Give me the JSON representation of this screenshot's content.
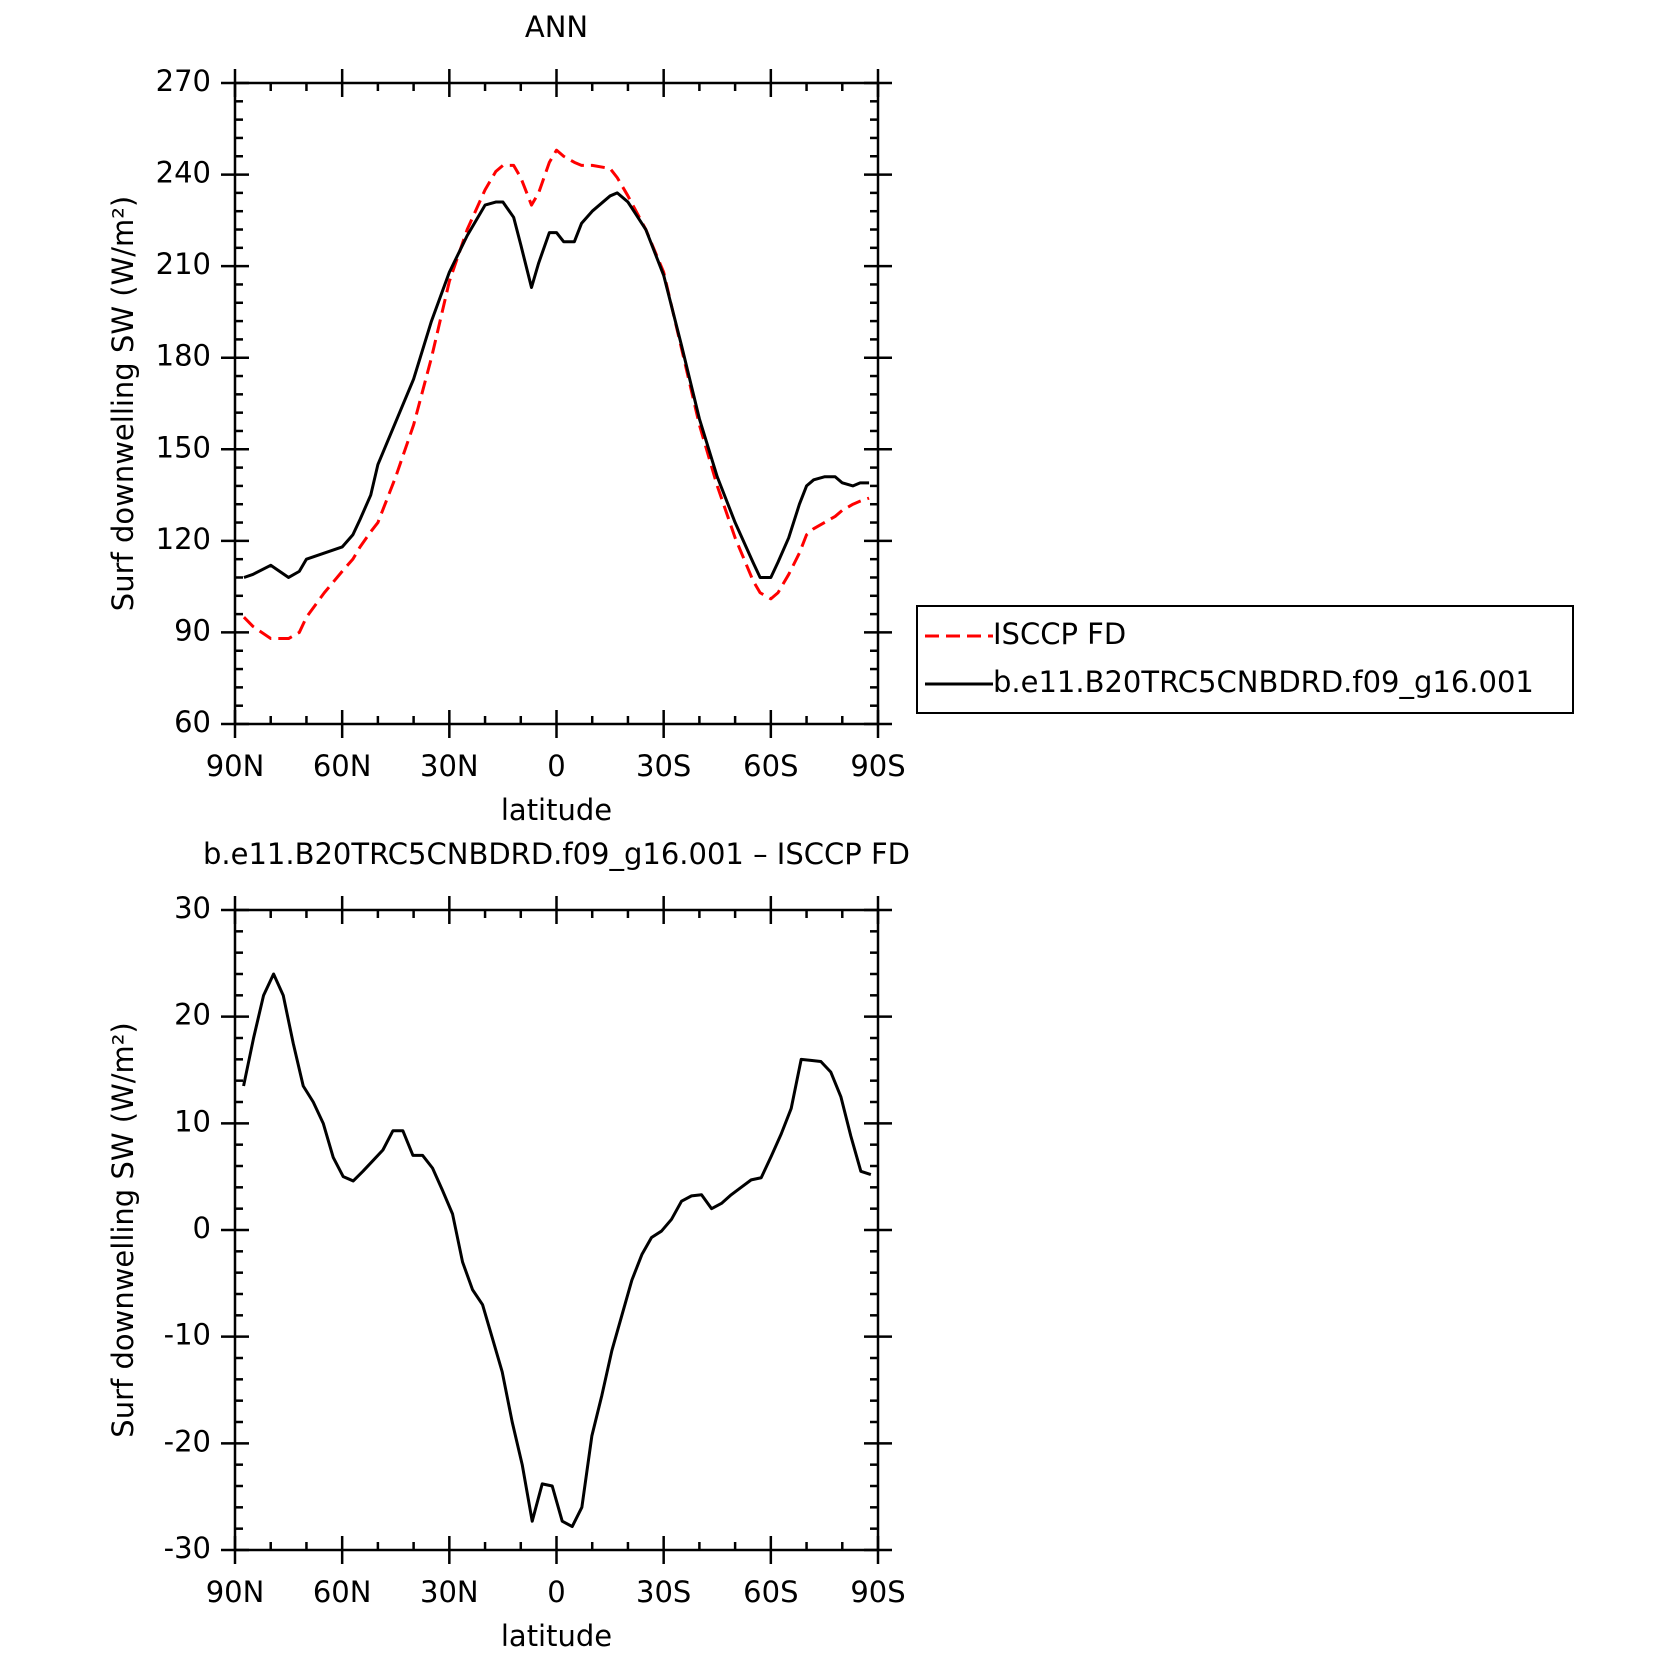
{
  "chart_data": [
    {
      "type": "line",
      "title": "ANN",
      "xlabel": "latitude",
      "ylabel": "Surf downwelling SW (W/m²)",
      "x": [
        87.5,
        85,
        80,
        75,
        72,
        70,
        65,
        60,
        57,
        55,
        52,
        50,
        45,
        40,
        35,
        30,
        25,
        20,
        17,
        15,
        12,
        10,
        7,
        5,
        2,
        0,
        -2,
        -5,
        -7,
        -10,
        -15,
        -17,
        -20,
        -25,
        -30,
        -35,
        -40,
        -45,
        -50,
        -55,
        -57,
        -60,
        -62,
        -65,
        -68,
        -70,
        -72,
        -75,
        -78,
        -80,
        -83,
        -85,
        -87.5
      ],
      "series": [
        {
          "name": "ISCCP FD",
          "color": "#ff0000",
          "dash": true,
          "values": [
            95,
            92,
            88,
            88,
            90,
            95,
            103,
            110,
            114,
            118,
            123,
            126,
            141,
            158,
            180,
            205,
            222,
            235,
            241,
            243,
            243,
            239,
            230,
            234,
            244,
            248,
            246,
            244,
            243,
            243,
            242,
            239,
            233,
            222,
            208,
            183,
            158,
            138,
            121,
            107,
            103,
            101,
            103,
            109,
            116,
            122,
            124,
            126,
            128,
            130,
            132,
            133,
            134
          ]
        },
        {
          "name": "b.e11.B20TRC5CNBDRD.f09_g16.001",
          "color": "#000000",
          "dash": false,
          "values": [
            108,
            109,
            112,
            108,
            110,
            114,
            116,
            118,
            122,
            127,
            135,
            145,
            159,
            173,
            192,
            208,
            220,
            230,
            231,
            231,
            226,
            217,
            203,
            211,
            221,
            221,
            218,
            218,
            224,
            228,
            233,
            234,
            231,
            222,
            207,
            184,
            160,
            141,
            126,
            113,
            108,
            108,
            113,
            121,
            132,
            138,
            140,
            141,
            141,
            139,
            138,
            139,
            139
          ]
        }
      ],
      "xlim": [
        90,
        -90
      ],
      "xticks": [
        {
          "value": 90,
          "label": "90N"
        },
        {
          "value": 60,
          "label": "60N"
        },
        {
          "value": 30,
          "label": "30N"
        },
        0,
        {
          "value": -30,
          "label": "30S"
        },
        {
          "value": -60,
          "label": "60S"
        },
        {
          "value": -90,
          "label": "90S"
        }
      ],
      "ylim": [
        60,
        270
      ],
      "yticks": [
        60,
        90,
        120,
        150,
        180,
        210,
        240,
        270
      ],
      "legend": "right"
    },
    {
      "type": "line",
      "title": "b.e11.B20TRC5CNBDRD.f09_g16.001 – ISCCP FD",
      "xlabel": "latitude",
      "ylabel": "Surf downwelling SW (W/m²)",
      "x": [
        87.6,
        84.8,
        82.0,
        79.2,
        76.5,
        73.7,
        70.9,
        68.1,
        65.3,
        62.5,
        59.7,
        56.9,
        54.2,
        51.4,
        48.6,
        45.8,
        43.0,
        40.2,
        37.5,
        34.7,
        31.9,
        29.1,
        26.3,
        23.5,
        20.7,
        17.9,
        15.2,
        12.4,
        9.6,
        6.8,
        4.0,
        1.2,
        -1.6,
        -4.4,
        -7.1,
        -9.9,
        -12.7,
        -15.5,
        -18.3,
        -21.1,
        -23.9,
        -26.6,
        -29.4,
        -32.2,
        -35.0,
        -37.8,
        -40.6,
        -43.4,
        -46.2,
        -48.9,
        -51.7,
        -54.5,
        -57.3,
        -60.1,
        -62.9,
        -65.7,
        -68.5,
        -71.2,
        -74.0,
        -76.8,
        -79.6,
        -82.4,
        -85.2,
        -88.0
      ],
      "series": [
        {
          "color": "#000000",
          "dash": false,
          "values": [
            13.5,
            18,
            22,
            24,
            22,
            17.5,
            13.5,
            12,
            10,
            6.8,
            5,
            4.6,
            5.5,
            6.5,
            7.5,
            9.3,
            9.3,
            7,
            7,
            5.8,
            3.7,
            1.5,
            -3,
            -5.6,
            -7,
            -10.2,
            -13.3,
            -18,
            -22,
            -27.3,
            -23.8,
            -24,
            -27.3,
            -27.8,
            -26,
            -19.3,
            -15.5,
            -11.3,
            -8,
            -4.7,
            -2.3,
            -0.7,
            -0.1,
            1,
            2.7,
            3.2,
            3.3,
            2,
            2.5,
            3.3,
            4,
            4.7,
            4.9,
            6.9,
            9,
            11.4,
            16,
            15.9,
            15.8,
            14.8,
            12.5,
            8.8,
            5.5,
            5.2
          ]
        }
      ],
      "xlim": [
        90,
        -90
      ],
      "xticks": [
        {
          "value": 90,
          "label": "90N"
        },
        {
          "value": 60,
          "label": "60N"
        },
        {
          "value": 30,
          "label": "30N"
        },
        0,
        {
          "value": -30,
          "label": "30S"
        },
        {
          "value": -60,
          "label": "60S"
        },
        {
          "value": -90,
          "label": "90S"
        }
      ],
      "ylim": [
        -30,
        30
      ],
      "yticks": [
        -30,
        -20,
        -10,
        0,
        10,
        20,
        30
      ]
    }
  ]
}
